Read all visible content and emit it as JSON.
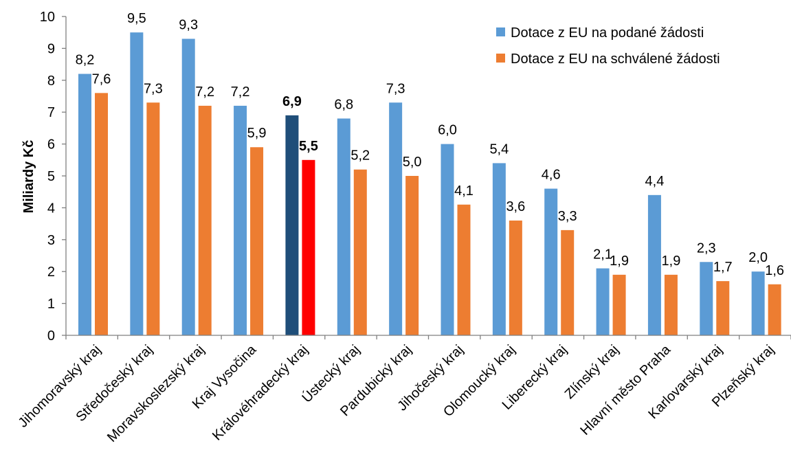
{
  "chart_data": {
    "type": "bar",
    "ylabel": "Miliardy Kč",
    "xlabel": "",
    "ylim": [
      0,
      10
    ],
    "yticks": [
      "0",
      "1",
      "2",
      "3",
      "4",
      "5",
      "6",
      "7",
      "8",
      "9",
      "10"
    ],
    "grid": false,
    "legend_position": "top-right",
    "categories": [
      "Jihomoravský kraj",
      "Středočeský kraj",
      "Moravskoslezský kraj",
      "Kraj Vysočina",
      "Královéhradecký kraj",
      "Ústecký kraj",
      "Pardubický kraj",
      "Jihočeský kraj",
      "Olomoucký kraj",
      "Liberecký kraj",
      "Zlínský kraj",
      "Hlavní město Praha",
      "Karlovarský kraj",
      "Plzeňský kraj"
    ],
    "highlight_index": 4,
    "series": [
      {
        "name": "Dotace z EU na podané žádosti",
        "color": "#5b9bd5",
        "highlight_color": "#1f4e79",
        "values": [
          8.2,
          9.5,
          9.3,
          7.2,
          6.9,
          6.8,
          7.3,
          6.0,
          5.4,
          4.6,
          2.1,
          4.4,
          2.3,
          2.0
        ],
        "labels": [
          "8,2",
          "9,5",
          "9,3",
          "7,2",
          "6,9",
          "6,8",
          "7,3",
          "6,0",
          "5,4",
          "4,6",
          "2,1",
          "4,4",
          "2,3",
          "2,0"
        ]
      },
      {
        "name": "Dotace z EU na schválené žádosti",
        "color": "#ed7d31",
        "highlight_color": "#ff0000",
        "values": [
          7.6,
          7.3,
          7.2,
          5.9,
          5.5,
          5.2,
          5.0,
          4.1,
          3.6,
          3.3,
          1.9,
          1.9,
          1.7,
          1.6
        ],
        "labels": [
          "7,6",
          "7,3",
          "7,2",
          "5,9",
          "5,5",
          "5,2",
          "5,0",
          "4,1",
          "3,6",
          "3,3",
          "1,9",
          "1,9",
          "1,7",
          "1,6"
        ]
      }
    ]
  }
}
